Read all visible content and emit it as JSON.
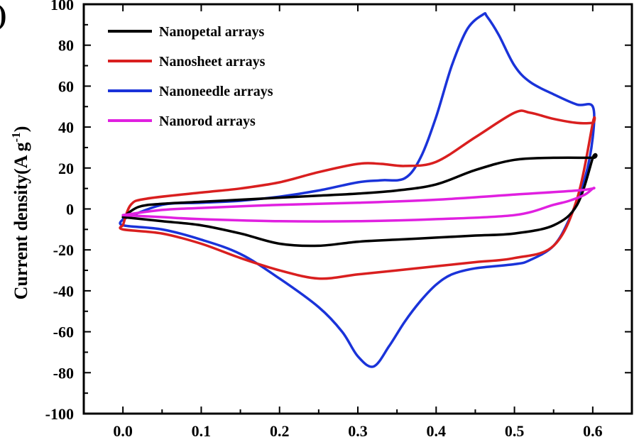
{
  "chart_data": {
    "type": "line",
    "panel_label": ")",
    "title": "",
    "xlabel": "",
    "ylabel": "Current density(A g",
    "ylabel_superscript": "-1",
    "ylabel_suffix": ")",
    "xlim": [
      -0.05,
      0.65
    ],
    "ylim": [
      -100,
      100
    ],
    "x_ticks": [
      0.0,
      0.1,
      0.2,
      0.3,
      0.4,
      0.5,
      0.6
    ],
    "x_tick_labels": [
      "0.0",
      "0.1",
      "0.2",
      "0.3",
      "0.4",
      "0.5",
      "0.6"
    ],
    "y_ticks": [
      -100,
      -80,
      -60,
      -40,
      -20,
      0,
      20,
      40,
      60,
      80,
      100
    ],
    "y_tick_labels": [
      "-100",
      "-80",
      "-60",
      "-40",
      "-20",
      "0",
      "20",
      "40",
      "60",
      "80",
      "100"
    ],
    "grid": false,
    "legend_position": "top-left",
    "series": [
      {
        "name": "Nanopetal arrays",
        "color": "#000000",
        "x": [
          0.0,
          0.02,
          0.05,
          0.1,
          0.15,
          0.2,
          0.25,
          0.3,
          0.35,
          0.4,
          0.45,
          0.5,
          0.55,
          0.6,
          0.6,
          0.58,
          0.55,
          0.5,
          0.45,
          0.4,
          0.35,
          0.3,
          0.25,
          0.2,
          0.15,
          0.1,
          0.05,
          0.0
        ],
        "y": [
          -4,
          1,
          2.5,
          3.5,
          4.5,
          5.5,
          6.5,
          7.5,
          9,
          12,
          19,
          24,
          25,
          25,
          25,
          2,
          -8,
          -12,
          -13,
          -14,
          -15,
          -16,
          -18,
          -17,
          -12,
          -8,
          -6,
          -4
        ]
      },
      {
        "name": "Nanosheet arrays",
        "color": "#d91f1f",
        "x": [
          0.0,
          0.01,
          0.03,
          0.1,
          0.15,
          0.2,
          0.25,
          0.3,
          0.33,
          0.36,
          0.4,
          0.45,
          0.5,
          0.52,
          0.55,
          0.58,
          0.6,
          0.6,
          0.58,
          0.55,
          0.5,
          0.45,
          0.4,
          0.35,
          0.3,
          0.25,
          0.2,
          0.15,
          0.1,
          0.05,
          0.0,
          0.0
        ],
        "y": [
          -8,
          2,
          5,
          8,
          10,
          13,
          18,
          22,
          22,
          21,
          23,
          35,
          47,
          47,
          44,
          42,
          42,
          42,
          5,
          -18,
          -24,
          -26,
          -28,
          -30,
          -32,
          -34,
          -30,
          -24,
          -17,
          -12,
          -10,
          -8
        ]
      },
      {
        "name": "Nanoneedle arrays",
        "color": "#1a33d9",
        "x": [
          0.0,
          0.05,
          0.1,
          0.15,
          0.2,
          0.25,
          0.3,
          0.33,
          0.36,
          0.38,
          0.4,
          0.42,
          0.44,
          0.46,
          0.465,
          0.48,
          0.5,
          0.52,
          0.55,
          0.58,
          0.6,
          0.6,
          0.59,
          0.57,
          0.55,
          0.52,
          0.5,
          0.45,
          0.42,
          0.4,
          0.38,
          0.36,
          0.34,
          0.32,
          0.3,
          0.28,
          0.25,
          0.2,
          0.15,
          0.1,
          0.05,
          0.0,
          0.0
        ],
        "y": [
          -5,
          2,
          3,
          4,
          6,
          9,
          13,
          14,
          15,
          25,
          45,
          70,
          88,
          95,
          94,
          85,
          70,
          62,
          56,
          51,
          50,
          35,
          15,
          -5,
          -18,
          -25,
          -27,
          -29,
          -32,
          -37,
          -45,
          -55,
          -67,
          -77,
          -72,
          -60,
          -48,
          -34,
          -22,
          -15,
          -10,
          -8,
          -5
        ]
      },
      {
        "name": "Nanorod arrays",
        "color": "#e020e0",
        "x": [
          0.0,
          0.05,
          0.1,
          0.2,
          0.3,
          0.4,
          0.5,
          0.58,
          0.6,
          0.6,
          0.59,
          0.57,
          0.55,
          0.5,
          0.4,
          0.3,
          0.2,
          0.1,
          0.05,
          0.0
        ],
        "y": [
          -3,
          -0.5,
          0.5,
          2,
          3,
          4.5,
          7,
          9,
          10,
          10,
          7,
          4,
          2,
          -3,
          -5,
          -6,
          -6,
          -5,
          -4,
          -3
        ]
      }
    ]
  }
}
